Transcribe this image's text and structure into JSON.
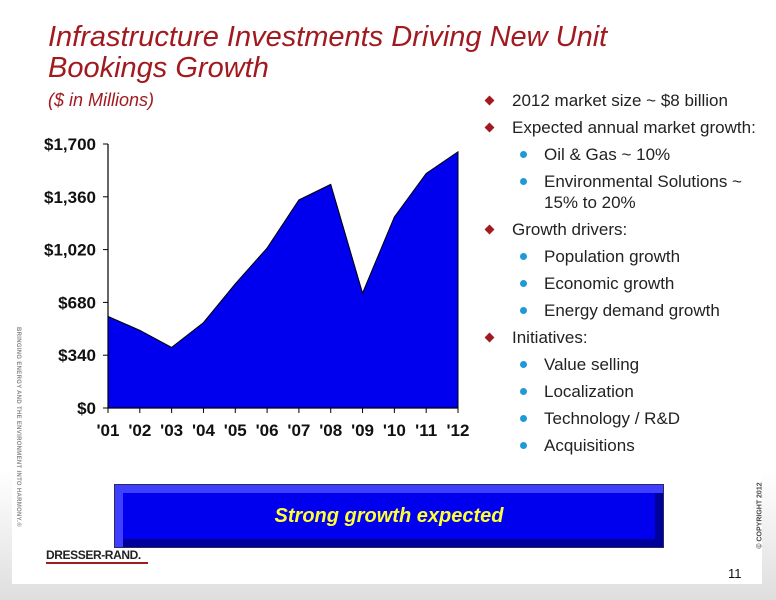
{
  "slide": {
    "title": "Infrastructure Investments Driving New Unit Bookings Growth",
    "subtitle": "($ in Millions)",
    "side_text": "BRINGING ENERGY AND THE ENVIRONMENT INTO HARMONY.®",
    "copyright": "© COPYRIGHT 2012",
    "banner": "Strong growth expected",
    "logo": "DRESSER-RAND.",
    "page_number": "11"
  },
  "bullets": [
    {
      "text": "2012 market size ~ $8 billion",
      "subs": []
    },
    {
      "text": "Expected annual market growth:",
      "subs": [
        "Oil & Gas ~ 10%",
        "Environmental Solutions ~ 15% to 20%"
      ]
    },
    {
      "text": "Growth drivers:",
      "subs": [
        "Population growth",
        "Economic growth",
        "Energy demand growth"
      ]
    },
    {
      "text": "Initiatives:",
      "subs": [
        "Value selling",
        "Localization",
        "Technology / R&D",
        "Acquisitions"
      ]
    }
  ],
  "colors": {
    "title": "#a01a1f",
    "area_fill": "#0000ee",
    "banner_text": "#ffff33",
    "sub_bullet": "#1f9ad6"
  },
  "chart_data": {
    "type": "area",
    "categories": [
      "'01",
      "'02",
      "'03",
      "'04",
      "'05",
      "'06",
      "'07",
      "'08",
      "'09",
      "'10",
      "'11",
      "'12"
    ],
    "values": [
      590,
      500,
      390,
      550,
      800,
      1030,
      1340,
      1440,
      740,
      1230,
      1510,
      1650
    ],
    "ylim": [
      0,
      1700
    ],
    "yticks": [
      0,
      340,
      680,
      1020,
      1360,
      1700
    ],
    "ytick_labels": [
      "$0",
      "$340",
      "$680",
      "$1,020",
      "$1,360",
      "$1,700"
    ],
    "grid": false,
    "legend": "none"
  }
}
